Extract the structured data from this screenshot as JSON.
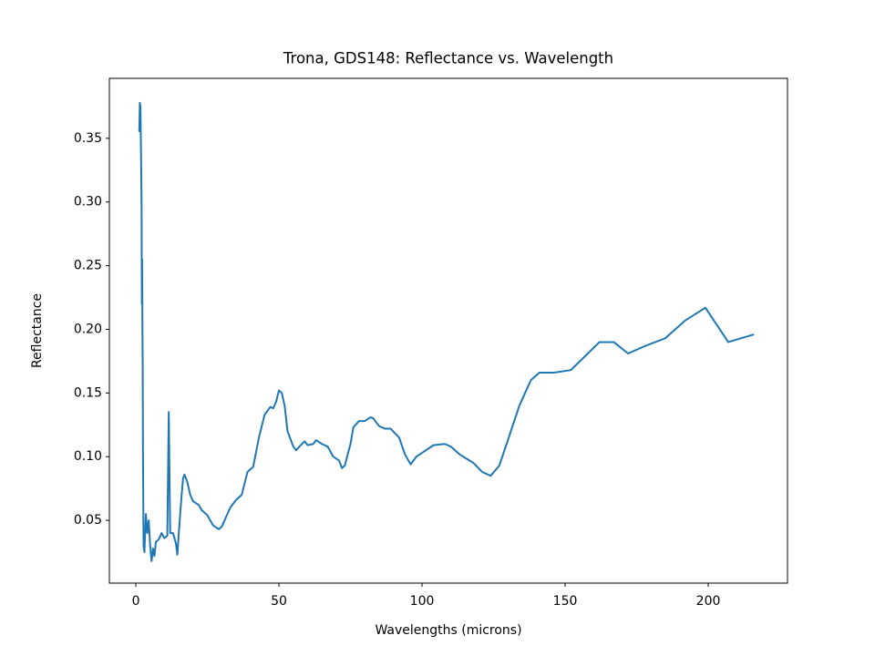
{
  "chart_data": {
    "type": "line",
    "title": "Trona, GDS148: Reflectance vs. Wavelength",
    "xlabel": "Wavelengths (microns)",
    "ylabel": "Reflectance",
    "color": "#1f77b4",
    "x": [
      1.2,
      1.4,
      1.6,
      1.8,
      2.0,
      2.1,
      2.2,
      2.3,
      2.4,
      2.5,
      2.7,
      3.0,
      3.5,
      4,
      4.5,
      5,
      5.5,
      6,
      6.5,
      7,
      8,
      9,
      10,
      11,
      11.5,
      12,
      13,
      14,
      14.5,
      15,
      15.5,
      16,
      16.5,
      17,
      18,
      19,
      20,
      22,
      23,
      25,
      27,
      29,
      30,
      31,
      33,
      35,
      37,
      39,
      41,
      43,
      45,
      47,
      48,
      49,
      50,
      51,
      52,
      53,
      55,
      56,
      58,
      59,
      60,
      62,
      63,
      65,
      67,
      69,
      71,
      72,
      73,
      75,
      76,
      78,
      80,
      82,
      83,
      85,
      87,
      89,
      92,
      94,
      96,
      98,
      100,
      104,
      108,
      110,
      113,
      118,
      121,
      124,
      127,
      130,
      134,
      138,
      141,
      146,
      152,
      162,
      167,
      172,
      178,
      185,
      192,
      199,
      207,
      216
    ],
    "values": [
      0.355,
      0.378,
      0.375,
      0.34,
      0.3,
      0.22,
      0.255,
      0.2,
      0.17,
      0.1,
      0.03,
      0.025,
      0.055,
      0.04,
      0.05,
      0.03,
      0.018,
      0.028,
      0.022,
      0.033,
      0.035,
      0.04,
      0.036,
      0.038,
      0.135,
      0.04,
      0.04,
      0.032,
      0.023,
      0.04,
      0.055,
      0.07,
      0.083,
      0.086,
      0.08,
      0.07,
      0.065,
      0.062,
      0.058,
      0.054,
      0.046,
      0.043,
      0.045,
      0.05,
      0.06,
      0.066,
      0.07,
      0.088,
      0.092,
      0.115,
      0.133,
      0.139,
      0.138,
      0.143,
      0.152,
      0.15,
      0.14,
      0.12,
      0.108,
      0.105,
      0.11,
      0.112,
      0.109,
      0.11,
      0.113,
      0.11,
      0.108,
      0.1,
      0.097,
      0.091,
      0.093,
      0.11,
      0.123,
      0.128,
      0.128,
      0.131,
      0.13,
      0.124,
      0.122,
      0.122,
      0.115,
      0.102,
      0.094,
      0.1,
      0.103,
      0.109,
      0.11,
      0.108,
      0.102,
      0.095,
      0.088,
      0.085,
      0.093,
      0.113,
      0.14,
      0.16,
      0.166,
      0.166,
      0.168,
      0.19,
      0.19,
      0.181,
      0.187,
      0.193,
      0.207,
      0.217,
      0.19,
      0.196
    ],
    "xlim": [
      -9.25,
      227.7
    ],
    "ylim": [
      0.0007,
      0.3971
    ],
    "xticks": [
      0,
      50,
      100,
      150,
      200
    ],
    "yticks": [
      0.05,
      {
        "value": 0.1,
        "label": "0.10"
      },
      0.15,
      {
        "value": 0.2,
        "label": "0.20"
      },
      0.25,
      {
        "value": 0.3,
        "label": "0.30"
      },
      0.35
    ]
  }
}
